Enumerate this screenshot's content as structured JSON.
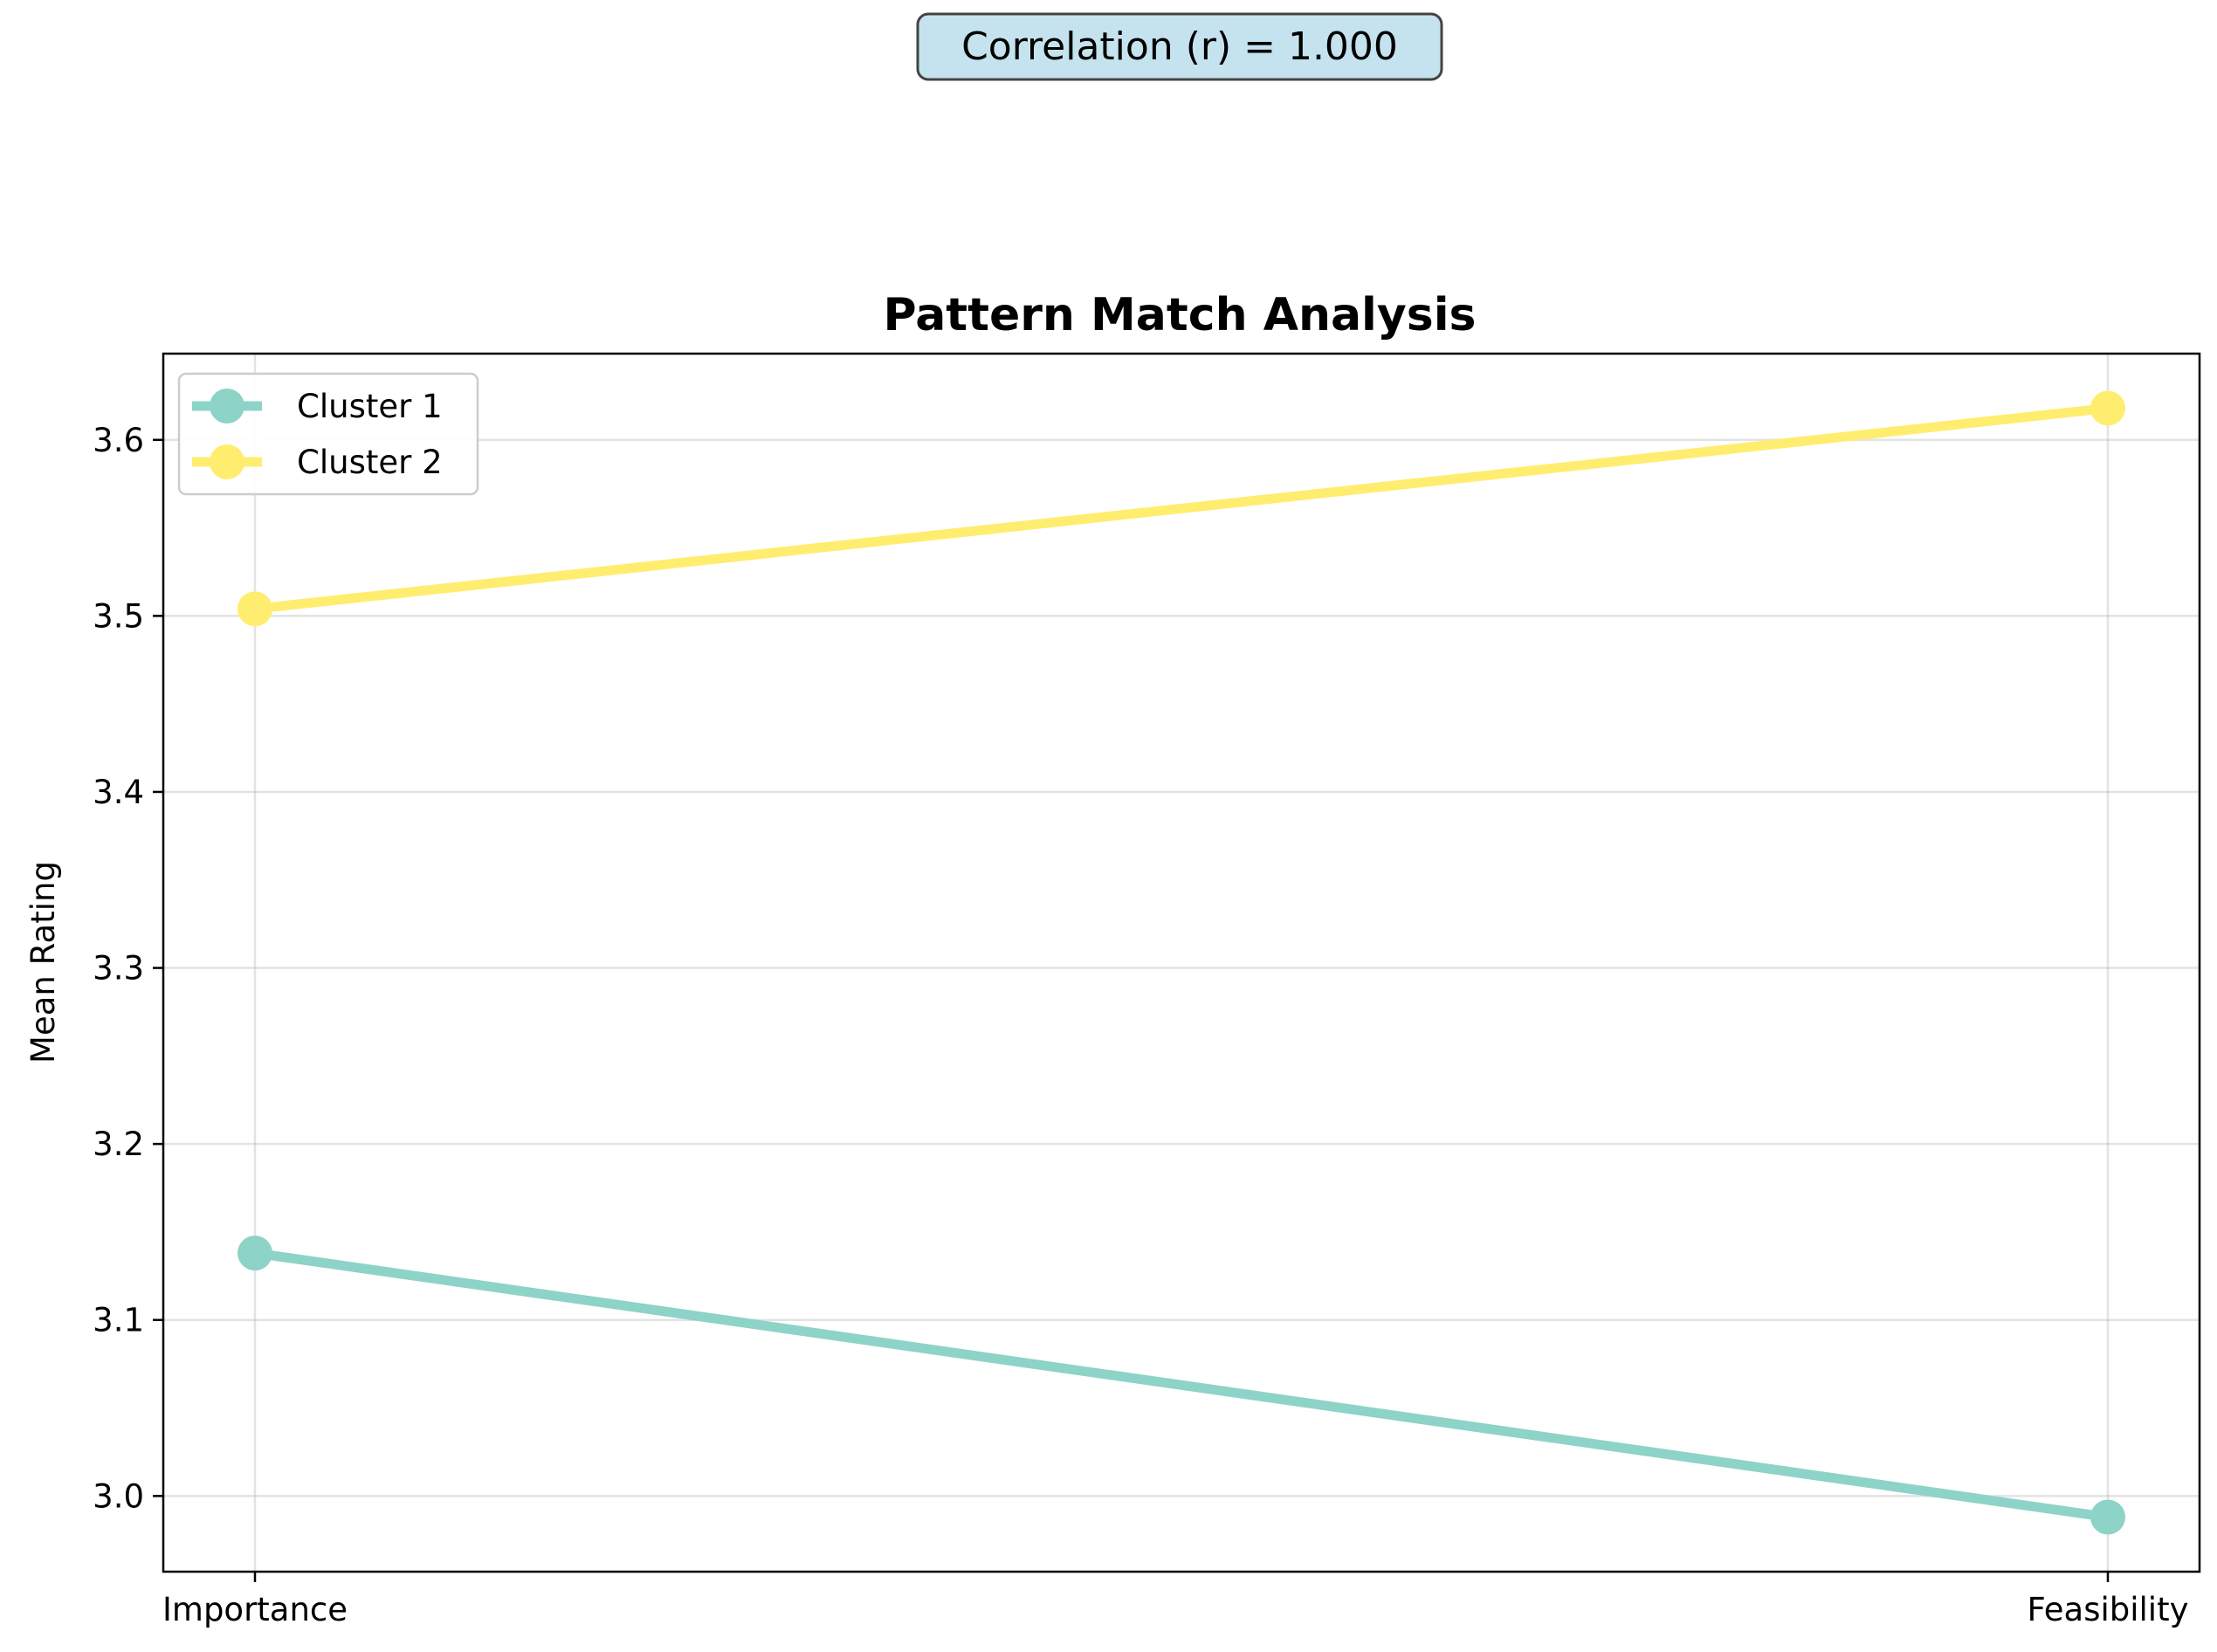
{
  "chart_data": {
    "type": "line",
    "title": "Pattern Match Analysis",
    "xlabel": "",
    "ylabel": "Mean Rating",
    "categories": [
      "Importance",
      "Feasibility"
    ],
    "series": [
      {
        "name": "Cluster 1",
        "values": [
          3.138,
          2.988
        ],
        "color": "#8dd3c7"
      },
      {
        "name": "Cluster 2",
        "values": [
          3.504,
          3.618
        ],
        "color": "#ffed6f"
      }
    ],
    "ylim": [
      2.957,
      3.649
    ],
    "yticks": [
      "3.0",
      "3.1",
      "3.2",
      "3.3",
      "3.4",
      "3.5",
      "3.6"
    ],
    "grid": true,
    "legend_position": "top-left",
    "annotation": "Correlation (r) = 1.000",
    "annotation_bg": "#c5e3ee"
  }
}
